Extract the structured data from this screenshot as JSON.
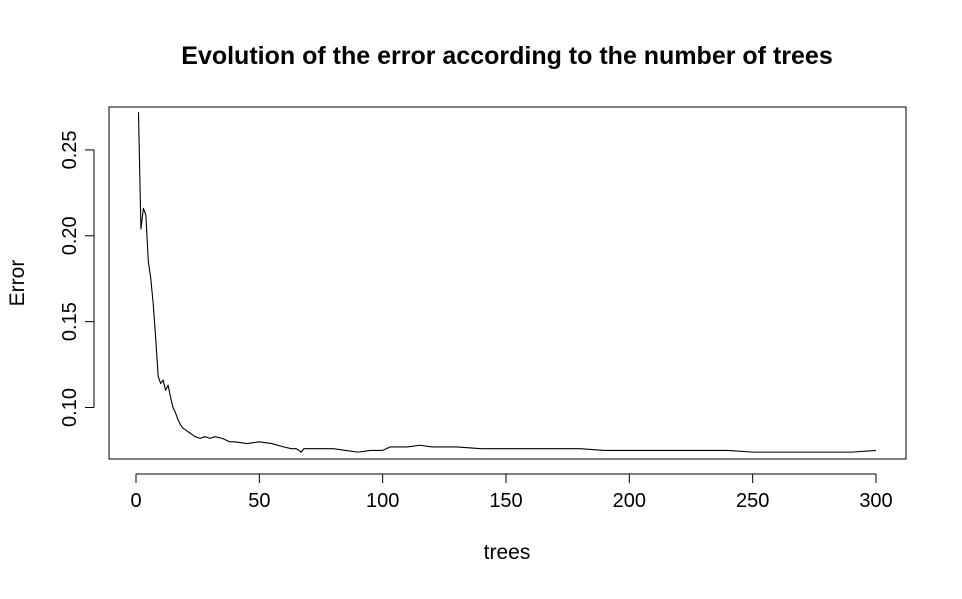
{
  "chart_data": {
    "type": "line",
    "title": "Evolution of the error according to the number of trees",
    "xlabel": "trees",
    "ylabel": "Error",
    "xlim": [
      0,
      300
    ],
    "ylim": [
      0.07,
      0.275
    ],
    "xticks": [
      0,
      50,
      100,
      150,
      200,
      250,
      300
    ],
    "yticks": [
      0.1,
      0.15,
      0.2,
      0.25
    ],
    "xtick_labels": [
      "0",
      "50",
      "100",
      "150",
      "200",
      "250",
      "300"
    ],
    "ytick_labels": [
      "0.10",
      "0.15",
      "0.20",
      "0.25"
    ],
    "grid": false,
    "legend": "none",
    "line_color": "#000000",
    "series": [
      {
        "x": [
          1,
          2,
          3,
          4,
          5,
          6,
          7,
          8,
          9,
          10,
          11,
          12,
          13,
          14,
          15,
          16,
          17,
          18,
          19,
          20,
          22,
          24,
          26,
          28,
          30,
          32,
          35,
          38,
          40,
          45,
          50,
          55,
          60,
          63,
          65,
          67,
          68,
          70,
          75,
          80,
          85,
          90,
          95,
          100,
          103,
          105,
          110,
          115,
          120,
          125,
          130,
          140,
          150,
          160,
          170,
          180,
          190,
          200,
          210,
          220,
          230,
          240,
          250,
          260,
          270,
          280,
          290,
          300
        ],
        "y": [
          0.272,
          0.204,
          0.216,
          0.212,
          0.185,
          0.175,
          0.16,
          0.14,
          0.118,
          0.114,
          0.116,
          0.11,
          0.113,
          0.106,
          0.1,
          0.097,
          0.093,
          0.09,
          0.088,
          0.087,
          0.085,
          0.083,
          0.082,
          0.083,
          0.082,
          0.083,
          0.082,
          0.08,
          0.08,
          0.079,
          0.08,
          0.079,
          0.077,
          0.076,
          0.076,
          0.074,
          0.076,
          0.076,
          0.076,
          0.076,
          0.075,
          0.074,
          0.075,
          0.075,
          0.077,
          0.077,
          0.077,
          0.078,
          0.077,
          0.077,
          0.077,
          0.076,
          0.076,
          0.076,
          0.076,
          0.076,
          0.075,
          0.075,
          0.075,
          0.075,
          0.075,
          0.075,
          0.074,
          0.074,
          0.074,
          0.074,
          0.074,
          0.075
        ]
      }
    ]
  }
}
